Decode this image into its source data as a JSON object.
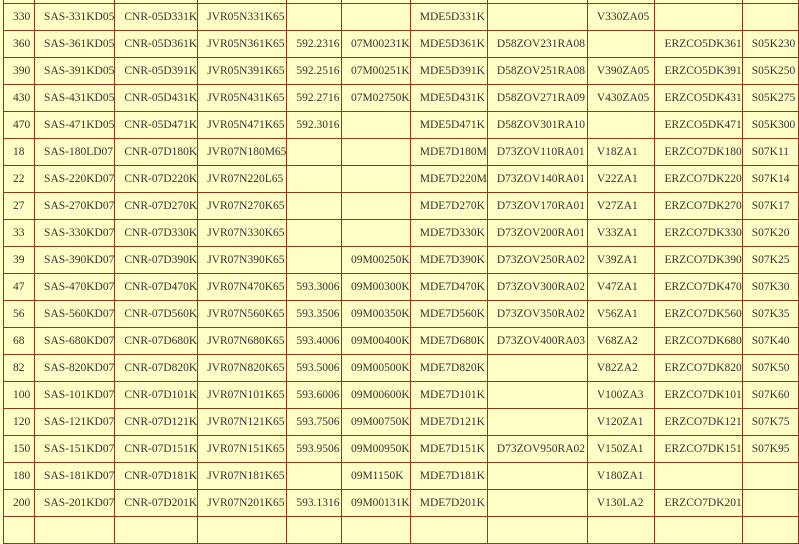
{
  "table": {
    "rows": [
      [
        "",
        "",
        "",
        "",
        "",
        "",
        "",
        "",
        "",
        "",
        ""
      ],
      [
        "330",
        "SAS-331KD05",
        "CNR-05D331K",
        "JVR05N331K65",
        "",
        "",
        "MDE5D331K",
        "",
        "V330ZA05",
        "",
        ""
      ],
      [
        "360",
        "SAS-361KD05",
        "CNR-05D361K",
        "JVR05N361K65",
        "592.2316",
        "07M00231K",
        "MDE5D361K",
        "D58ZOV231RA08",
        "",
        "ERZCO5DK361",
        "S05K230"
      ],
      [
        "390",
        "SAS-391KD05",
        "CNR-05D391K",
        "JVR05N391K65",
        "592.2516",
        "07M00251K",
        "MDE5D391K",
        "D58ZOV251RA08",
        "V390ZA05",
        "ERZCO5DK391",
        "S05K250"
      ],
      [
        "430",
        "SAS-431KD05",
        "CNR-05D431K",
        "JVR05N431K65",
        "592.2716",
        "07M02750K",
        "MDE5D431K",
        "D58ZOV271RA09",
        "V430ZA05",
        "ERZCO5DK431",
        "S05K275"
      ],
      [
        "470",
        "SAS-471KD05",
        "CNR-05D471K",
        "JVR05N471K65",
        "592.3016",
        "",
        "MDE5D471K",
        "D58ZOV301RA10",
        "",
        "ERZCO5DK471",
        "S05K300"
      ],
      [
        "18",
        "SAS-180LD07",
        "CNR-07D180K",
        "JVR07N180M65",
        "",
        "",
        "MDE7D180M",
        "D73ZOV110RA01",
        "V18ZA1",
        "ERZCO7DK180",
        "S07K11"
      ],
      [
        "22",
        "SAS-220KD07",
        "CNR-07D220K",
        "JVR07N220L65",
        "",
        "",
        "MDE7D220M",
        "D73ZOV140RA01",
        "V22ZA1",
        "ERZCO7DK220",
        "S07K14"
      ],
      [
        "27",
        "SAS-270KD07",
        "CNR-07D270K",
        "JVR07N270K65",
        "",
        "",
        "MDE7D270K",
        "D73ZOV170RA01",
        "V27ZA1",
        "ERZCO7DK270",
        "S07K17"
      ],
      [
        "33",
        "SAS-330KD07",
        "CNR-07D330K",
        "JVR07N330K65",
        "",
        "",
        "MDE7D330K",
        "D73ZOV200RA01",
        "V33ZA1",
        "ERZCO7DK330",
        "S07K20"
      ],
      [
        "39",
        "SAS-390KD07",
        "CNR-07D390K",
        "JVR07N390K65",
        "",
        "09M00250K",
        "MDE7D390K",
        "D73ZOV250RA02",
        "V39ZA1",
        "ERZCO7DK390",
        "S07K25"
      ],
      [
        "47",
        "SAS-470KD07",
        "CNR-07D470K",
        "JVR07N470K65",
        "593.3006",
        "09M00300K",
        "MDE7D470K",
        "D73ZOV300RA02",
        "V47ZA1",
        "ERZCO7DK470",
        "S07K30"
      ],
      [
        "56",
        "SAS-560KD07",
        "CNR-07D560K",
        "JVR07N560K65",
        "593.3506",
        "09M00350K",
        "MDE7D560K",
        "D73ZOV350RA02",
        "V56ZA1",
        "ERZCO7DK560",
        "S07K35"
      ],
      [
        "68",
        "SAS-680KD07",
        "CNR-07D680K",
        "JVR07N680K65",
        "593.4006",
        "09M00400K",
        "MDE7D680K",
        "D73ZOV400RA03",
        "V68ZA2",
        "ERZCO7DK680",
        "S07K40"
      ],
      [
        "82",
        "SAS-820KD07",
        "CNR-07D820K",
        "JVR07N820K65",
        "593.5006",
        "09M00500K",
        "MDE7D820K",
        "",
        "V82ZA2",
        "ERZCO7DK820",
        "S07K50"
      ],
      [
        "100",
        "SAS-101KD07",
        "CNR-07D101K",
        "JVR07N101K65",
        "593.6006",
        "09M00600K",
        "MDE7D101K",
        "",
        "V100ZA3",
        "ERZCO7DK101",
        "S07K60"
      ],
      [
        "120",
        "SAS-121KD07",
        "CNR-07D121K",
        "JVR07N121K65",
        "593.7506",
        "09M00750K",
        "MDE7D121K",
        "",
        "V120ZA1",
        "ERZCO7DK121",
        "S07K75"
      ],
      [
        "150",
        "SAS-151KD07",
        "CNR-07D151K",
        "JVR07N151K65",
        "593.9506",
        "09M00950K",
        "MDE7D151K",
        "D73ZOV950RA02",
        "V150ZA1",
        "ERZCO7DK151",
        "S07K95"
      ],
      [
        "180",
        "SAS-181KD07",
        "CNR-07D181K",
        "JVR07N181K65",
        "",
        "09M1150K",
        "MDE7D181K",
        "",
        "V180ZA1",
        "",
        ""
      ],
      [
        "200",
        "SAS-201KD07",
        "CNR-07D201K",
        "JVR07N201K65",
        "593.1316",
        "09M00131K",
        "MDE7D201K",
        "",
        "V130LA2",
        "ERZCO7DK201",
        ""
      ],
      [
        "",
        "",
        "",
        "",
        "",
        "",
        "",
        "",
        "",
        "",
        ""
      ]
    ]
  }
}
